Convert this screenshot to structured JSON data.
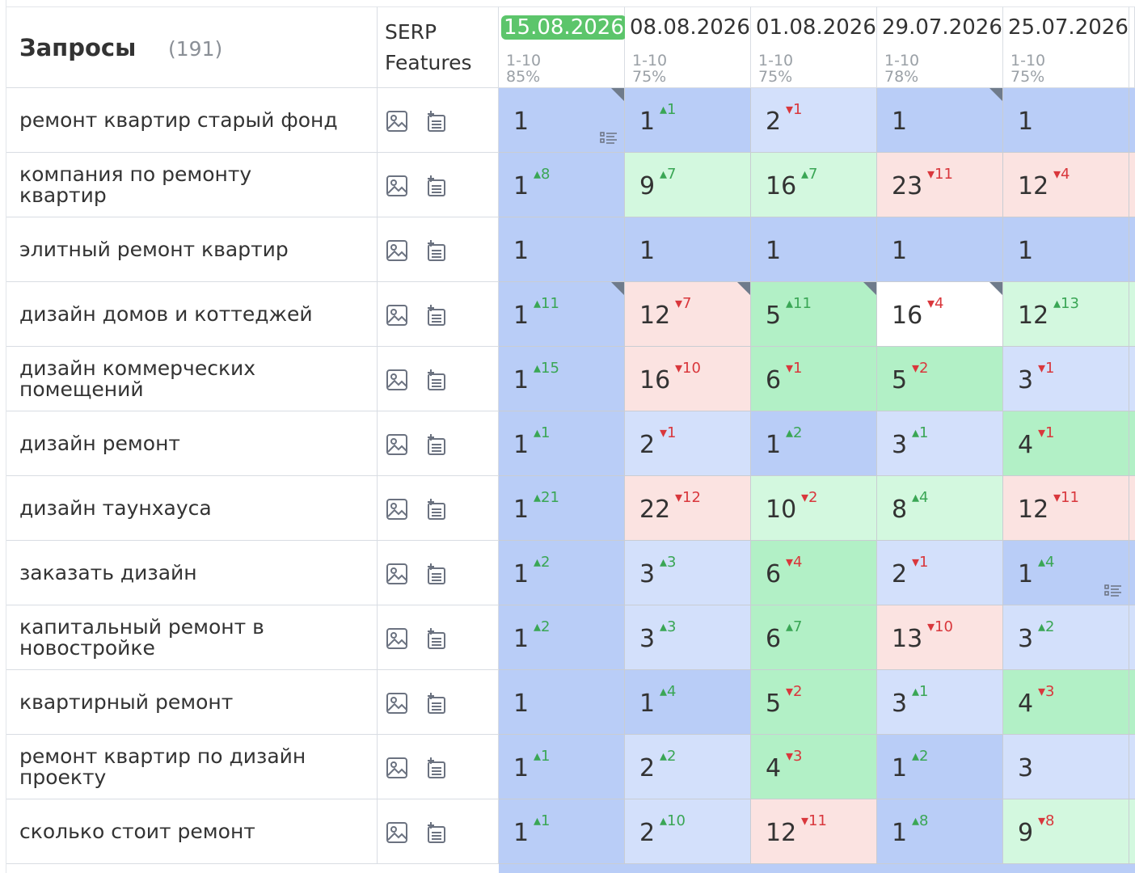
{
  "header": {
    "queries_title": "Запросы",
    "queries_count": "(191)",
    "serp_line1": "SERP",
    "serp_line2": "Features"
  },
  "dates": [
    {
      "label": "15.08.2026",
      "range": "1-10",
      "pct": "85%",
      "active": true
    },
    {
      "label": "08.08.2026",
      "range": "1-10",
      "pct": "75%",
      "active": false
    },
    {
      "label": "01.08.2026",
      "range": "1-10",
      "pct": "75%",
      "active": false
    },
    {
      "label": "29.07.2026",
      "range": "1-10",
      "pct": "78%",
      "active": false
    },
    {
      "label": "25.07.2026",
      "range": "1-10",
      "pct": "75%",
      "active": false
    }
  ],
  "colors": {
    "top1": "#b9cdf7",
    "top3": "#d3e0fb",
    "top10_strong": "#b2f0c6",
    "top10_light": "#d3f8df",
    "out_top10": "#fbe3e1",
    "white": "#ffffff"
  },
  "rows": [
    {
      "query": "ремонт квартир старый фонд",
      "cells": [
        {
          "pos": "1",
          "delta": "",
          "dir": "",
          "bg": "top1",
          "corner": true,
          "list": true
        },
        {
          "pos": "1",
          "delta": "1",
          "dir": "up",
          "bg": "top1"
        },
        {
          "pos": "2",
          "delta": "1",
          "dir": "down",
          "bg": "top3"
        },
        {
          "pos": "1",
          "delta": "",
          "dir": "",
          "bg": "top1",
          "corner": true
        },
        {
          "pos": "1",
          "delta": "",
          "dir": "",
          "bg": "top1"
        }
      ]
    },
    {
      "query": "компания по ремонту квартир",
      "cells": [
        {
          "pos": "1",
          "delta": "8",
          "dir": "up",
          "bg": "top1"
        },
        {
          "pos": "9",
          "delta": "7",
          "dir": "up",
          "bg": "top10_light"
        },
        {
          "pos": "16",
          "delta": "7",
          "dir": "up",
          "bg": "top10_light"
        },
        {
          "pos": "23",
          "delta": "11",
          "dir": "down",
          "bg": "out_top10"
        },
        {
          "pos": "12",
          "delta": "4",
          "dir": "down",
          "bg": "out_top10"
        }
      ]
    },
    {
      "query": "элитный ремонт квартир",
      "cells": [
        {
          "pos": "1",
          "delta": "",
          "dir": "",
          "bg": "top1"
        },
        {
          "pos": "1",
          "delta": "",
          "dir": "",
          "bg": "top1"
        },
        {
          "pos": "1",
          "delta": "",
          "dir": "",
          "bg": "top1"
        },
        {
          "pos": "1",
          "delta": "",
          "dir": "",
          "bg": "top1"
        },
        {
          "pos": "1",
          "delta": "",
          "dir": "",
          "bg": "top1"
        }
      ]
    },
    {
      "query": "дизайн домов и коттеджей",
      "cells": [
        {
          "pos": "1",
          "delta": "11",
          "dir": "up",
          "bg": "top1",
          "corner": true
        },
        {
          "pos": "12",
          "delta": "7",
          "dir": "down",
          "bg": "out_top10",
          "corner": true
        },
        {
          "pos": "5",
          "delta": "11",
          "dir": "up",
          "bg": "top10_strong",
          "corner": true
        },
        {
          "pos": "16",
          "delta": "4",
          "dir": "down",
          "bg": "white",
          "corner": true
        },
        {
          "pos": "12",
          "delta": "13",
          "dir": "up",
          "bg": "top10_light"
        }
      ]
    },
    {
      "query": "дизайн коммерческих помещений",
      "cells": [
        {
          "pos": "1",
          "delta": "15",
          "dir": "up",
          "bg": "top1"
        },
        {
          "pos": "16",
          "delta": "10",
          "dir": "down",
          "bg": "out_top10"
        },
        {
          "pos": "6",
          "delta": "1",
          "dir": "down",
          "bg": "top10_strong"
        },
        {
          "pos": "5",
          "delta": "2",
          "dir": "down",
          "bg": "top10_strong"
        },
        {
          "pos": "3",
          "delta": "1",
          "dir": "down",
          "bg": "top3"
        }
      ]
    },
    {
      "query": "дизайн ремонт",
      "cells": [
        {
          "pos": "1",
          "delta": "1",
          "dir": "up",
          "bg": "top1"
        },
        {
          "pos": "2",
          "delta": "1",
          "dir": "down",
          "bg": "top3"
        },
        {
          "pos": "1",
          "delta": "2",
          "dir": "up",
          "bg": "top1"
        },
        {
          "pos": "3",
          "delta": "1",
          "dir": "up",
          "bg": "top3"
        },
        {
          "pos": "4",
          "delta": "1",
          "dir": "down",
          "bg": "top10_strong"
        }
      ]
    },
    {
      "query": "дизайн таунхауса",
      "cells": [
        {
          "pos": "1",
          "delta": "21",
          "dir": "up",
          "bg": "top1"
        },
        {
          "pos": "22",
          "delta": "12",
          "dir": "down",
          "bg": "out_top10"
        },
        {
          "pos": "10",
          "delta": "2",
          "dir": "down",
          "bg": "top10_light"
        },
        {
          "pos": "8",
          "delta": "4",
          "dir": "up",
          "bg": "top10_light"
        },
        {
          "pos": "12",
          "delta": "11",
          "dir": "down",
          "bg": "out_top10"
        }
      ]
    },
    {
      "query": "заказать дизайн",
      "cells": [
        {
          "pos": "1",
          "delta": "2",
          "dir": "up",
          "bg": "top1"
        },
        {
          "pos": "3",
          "delta": "3",
          "dir": "up",
          "bg": "top3"
        },
        {
          "pos": "6",
          "delta": "4",
          "dir": "down",
          "bg": "top10_strong"
        },
        {
          "pos": "2",
          "delta": "1",
          "dir": "down",
          "bg": "top3"
        },
        {
          "pos": "1",
          "delta": "4",
          "dir": "up",
          "bg": "top1",
          "list": true
        }
      ]
    },
    {
      "query": "капитальный ремонт в новостройке",
      "cells": [
        {
          "pos": "1",
          "delta": "2",
          "dir": "up",
          "bg": "top1"
        },
        {
          "pos": "3",
          "delta": "3",
          "dir": "up",
          "bg": "top3"
        },
        {
          "pos": "6",
          "delta": "7",
          "dir": "up",
          "bg": "top10_strong"
        },
        {
          "pos": "13",
          "delta": "10",
          "dir": "down",
          "bg": "out_top10"
        },
        {
          "pos": "3",
          "delta": "2",
          "dir": "up",
          "bg": "top3"
        }
      ]
    },
    {
      "query": "квартирный ремонт",
      "cells": [
        {
          "pos": "1",
          "delta": "",
          "dir": "",
          "bg": "top1"
        },
        {
          "pos": "1",
          "delta": "4",
          "dir": "up",
          "bg": "top1"
        },
        {
          "pos": "5",
          "delta": "2",
          "dir": "down",
          "bg": "top10_strong"
        },
        {
          "pos": "3",
          "delta": "1",
          "dir": "up",
          "bg": "top3"
        },
        {
          "pos": "4",
          "delta": "3",
          "dir": "down",
          "bg": "top10_strong"
        }
      ]
    },
    {
      "query": "ремонт квартир по дизайн проекту",
      "cells": [
        {
          "pos": "1",
          "delta": "1",
          "dir": "up",
          "bg": "top1"
        },
        {
          "pos": "2",
          "delta": "2",
          "dir": "up",
          "bg": "top3"
        },
        {
          "pos": "4",
          "delta": "3",
          "dir": "down",
          "bg": "top10_strong"
        },
        {
          "pos": "1",
          "delta": "2",
          "dir": "up",
          "bg": "top1"
        },
        {
          "pos": "3",
          "delta": "",
          "dir": "",
          "bg": "top3"
        }
      ]
    },
    {
      "query": "сколько стоит ремонт",
      "cells": [
        {
          "pos": "1",
          "delta": "1",
          "dir": "up",
          "bg": "top1"
        },
        {
          "pos": "2",
          "delta": "10",
          "dir": "up",
          "bg": "top3"
        },
        {
          "pos": "12",
          "delta": "11",
          "dir": "down",
          "bg": "out_top10"
        },
        {
          "pos": "1",
          "delta": "8",
          "dir": "up",
          "bg": "top1"
        },
        {
          "pos": "9",
          "delta": "8",
          "dir": "down",
          "bg": "top10_light"
        }
      ]
    }
  ]
}
